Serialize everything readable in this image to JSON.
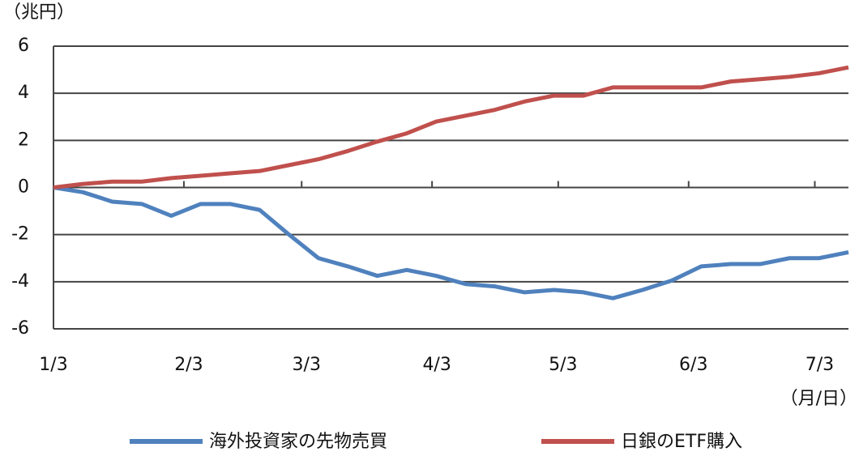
{
  "chart_data": {
    "type": "line",
    "y_unit": "（兆円）",
    "x_unit": "（月/日）",
    "x": [
      0,
      7,
      14,
      21,
      28,
      35,
      42,
      49,
      56,
      63,
      70,
      77,
      84,
      91,
      98,
      105,
      112,
      119,
      126,
      133,
      140,
      147,
      154,
      161,
      168,
      175,
      182,
      189
    ],
    "xlim": [
      0,
      189
    ],
    "xticks": [
      {
        "value": 0,
        "label": "1/3"
      },
      {
        "value": 31,
        "label": "2/3"
      },
      {
        "value": 59,
        "label": "3/3"
      },
      {
        "value": 90,
        "label": "4/3"
      },
      {
        "value": 120,
        "label": "5/3"
      },
      {
        "value": 151,
        "label": "6/3"
      },
      {
        "value": 181,
        "label": "7/3"
      }
    ],
    "ylim": [
      -6,
      6
    ],
    "yticks": [
      6,
      4,
      2,
      0,
      -2,
      -4,
      -6
    ],
    "grid": true,
    "series": [
      {
        "name": "海外投資家の先物売買",
        "color": "#4f81bd",
        "values": [
          0,
          -0.2,
          -0.6,
          -0.7,
          -1.2,
          -0.7,
          -0.7,
          -0.95,
          -2.0,
          -3.0,
          -3.35,
          -3.75,
          -3.5,
          -3.75,
          -4.1,
          -4.2,
          -4.45,
          -4.35,
          -4.45,
          -4.7,
          -4.35,
          -3.95,
          -3.35,
          -3.25,
          -3.25,
          -3.0,
          -3.0,
          -2.75
        ]
      },
      {
        "name": "日銀のETF購入",
        "color": "#c0504d",
        "values": [
          0,
          0.15,
          0.25,
          0.25,
          0.4,
          0.5,
          0.6,
          0.7,
          0.95,
          1.2,
          1.55,
          1.95,
          2.3,
          2.8,
          3.05,
          3.3,
          3.65,
          3.9,
          3.9,
          4.25,
          4.25,
          4.25,
          4.25,
          4.5,
          4.6,
          4.7,
          4.85,
          5.1
        ]
      }
    ]
  }
}
